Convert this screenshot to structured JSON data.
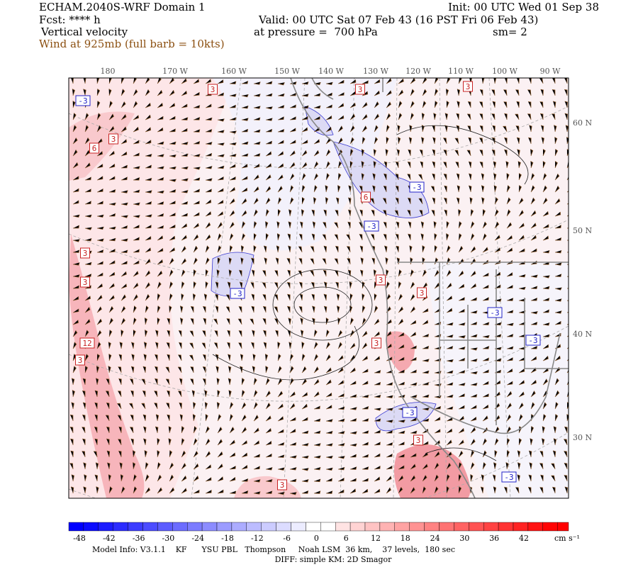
{
  "header": {
    "title": "ECHAM.2040S-WRF Domain 1",
    "init": "Init: 00 UTC Wed 01 Sep 38",
    "forecast": "Fcst: **** h",
    "valid": "Valid: 00 UTC Sat 07 Feb 43 (16 PST Fri 06 Feb 43)",
    "field": "Vertical velocity",
    "pressure": "at pressure =  700 hPa",
    "smoothing": "sm= 2",
    "wind": "Wind at 925mb (full barb = 10kts)"
  },
  "map": {
    "longitudes": [
      "180",
      "170 W",
      "160 W",
      "150 W",
      "140 W",
      "130 W",
      "120 W",
      "110 W",
      "100 W",
      "90 W"
    ],
    "latitudes": [
      "60 N",
      "50 N",
      "40 N",
      "30 N"
    ],
    "contour_labels": [
      "-3",
      "3",
      "3",
      "3",
      "3",
      "6",
      "3",
      "3",
      "12",
      "3",
      "-3",
      "6",
      "-3",
      "-3",
      "3",
      "3",
      "-3",
      "-3",
      "3",
      "-3",
      "3",
      "3",
      "-3"
    ]
  },
  "colorbar": {
    "ticks": [
      -48,
      -42,
      -36,
      -30,
      -24,
      -18,
      -12,
      -6,
      0,
      6,
      12,
      18,
      24,
      30,
      36,
      42
    ],
    "unit": "cm s⁻¹"
  },
  "footer": {
    "model": "Model Info: V3.1.1    KF      YSU PBL   Thompson     Noah LSM  36 km,    37 levels,  180 sec",
    "diff": "DIFF: simple KM: 2D Smagor"
  }
}
